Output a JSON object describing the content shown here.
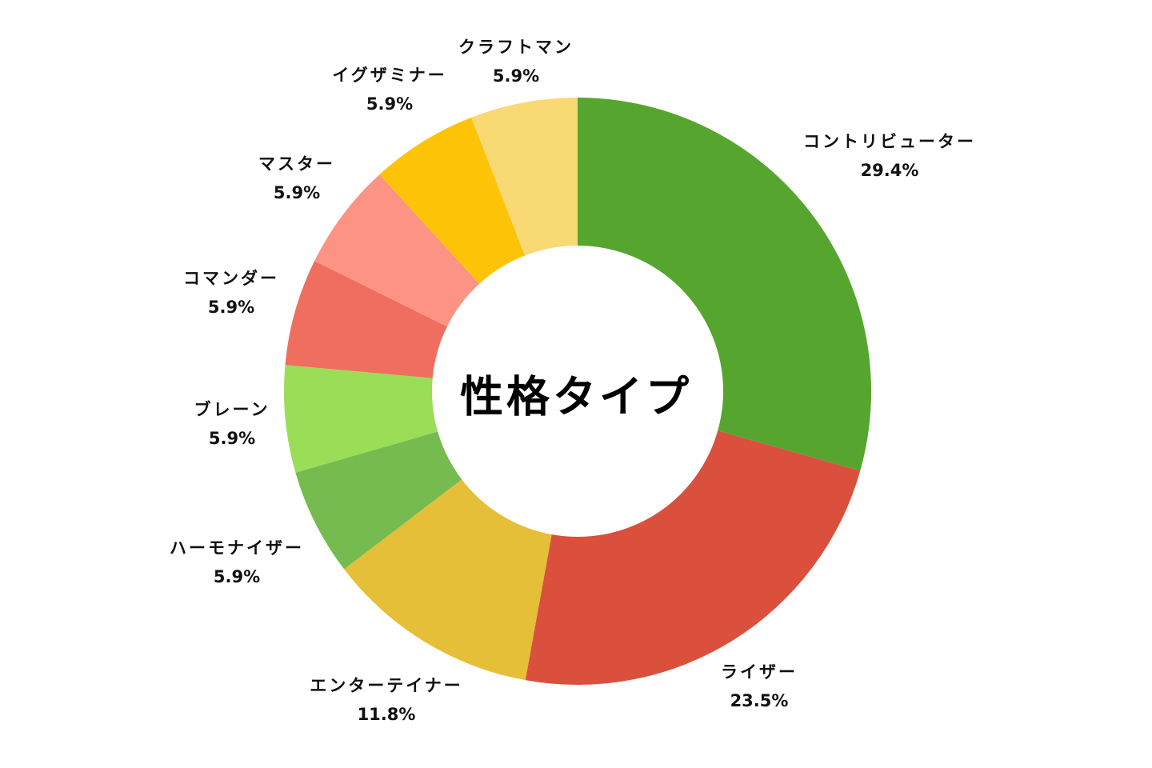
{
  "chart_data": {
    "type": "pie",
    "title": "性格タイプ",
    "donut": true,
    "start_angle_deg": 0,
    "direction": "clockwise",
    "legend": "none",
    "slices": [
      {
        "label": "コントリビューター",
        "value": 29.4,
        "display": "29.4%",
        "color": "#56a52f"
      },
      {
        "label": "ライザー",
        "value": 23.5,
        "display": "23.5%",
        "color": "#db4f3d"
      },
      {
        "label": "エンターテイナー",
        "value": 11.8,
        "display": "11.8%",
        "color": "#e5bf37"
      },
      {
        "label": "ハーモナイザー",
        "value": 5.9,
        "display": "5.9%",
        "color": "#75bb4f"
      },
      {
        "label": "ブレーン",
        "value": 5.9,
        "display": "5.9%",
        "color": "#9bdd57"
      },
      {
        "label": "コマンダー",
        "value": 5.9,
        "display": "5.9%",
        "color": "#f06e5f"
      },
      {
        "label": "マスター",
        "value": 5.9,
        "display": "5.9%",
        "color": "#fd9385"
      },
      {
        "label": "イグザミナー",
        "value": 5.9,
        "display": "5.9%",
        "color": "#fdc407"
      },
      {
        "label": "クラフトマン",
        "value": 5.9,
        "display": "5.9%",
        "color": "#f8d974"
      }
    ]
  }
}
